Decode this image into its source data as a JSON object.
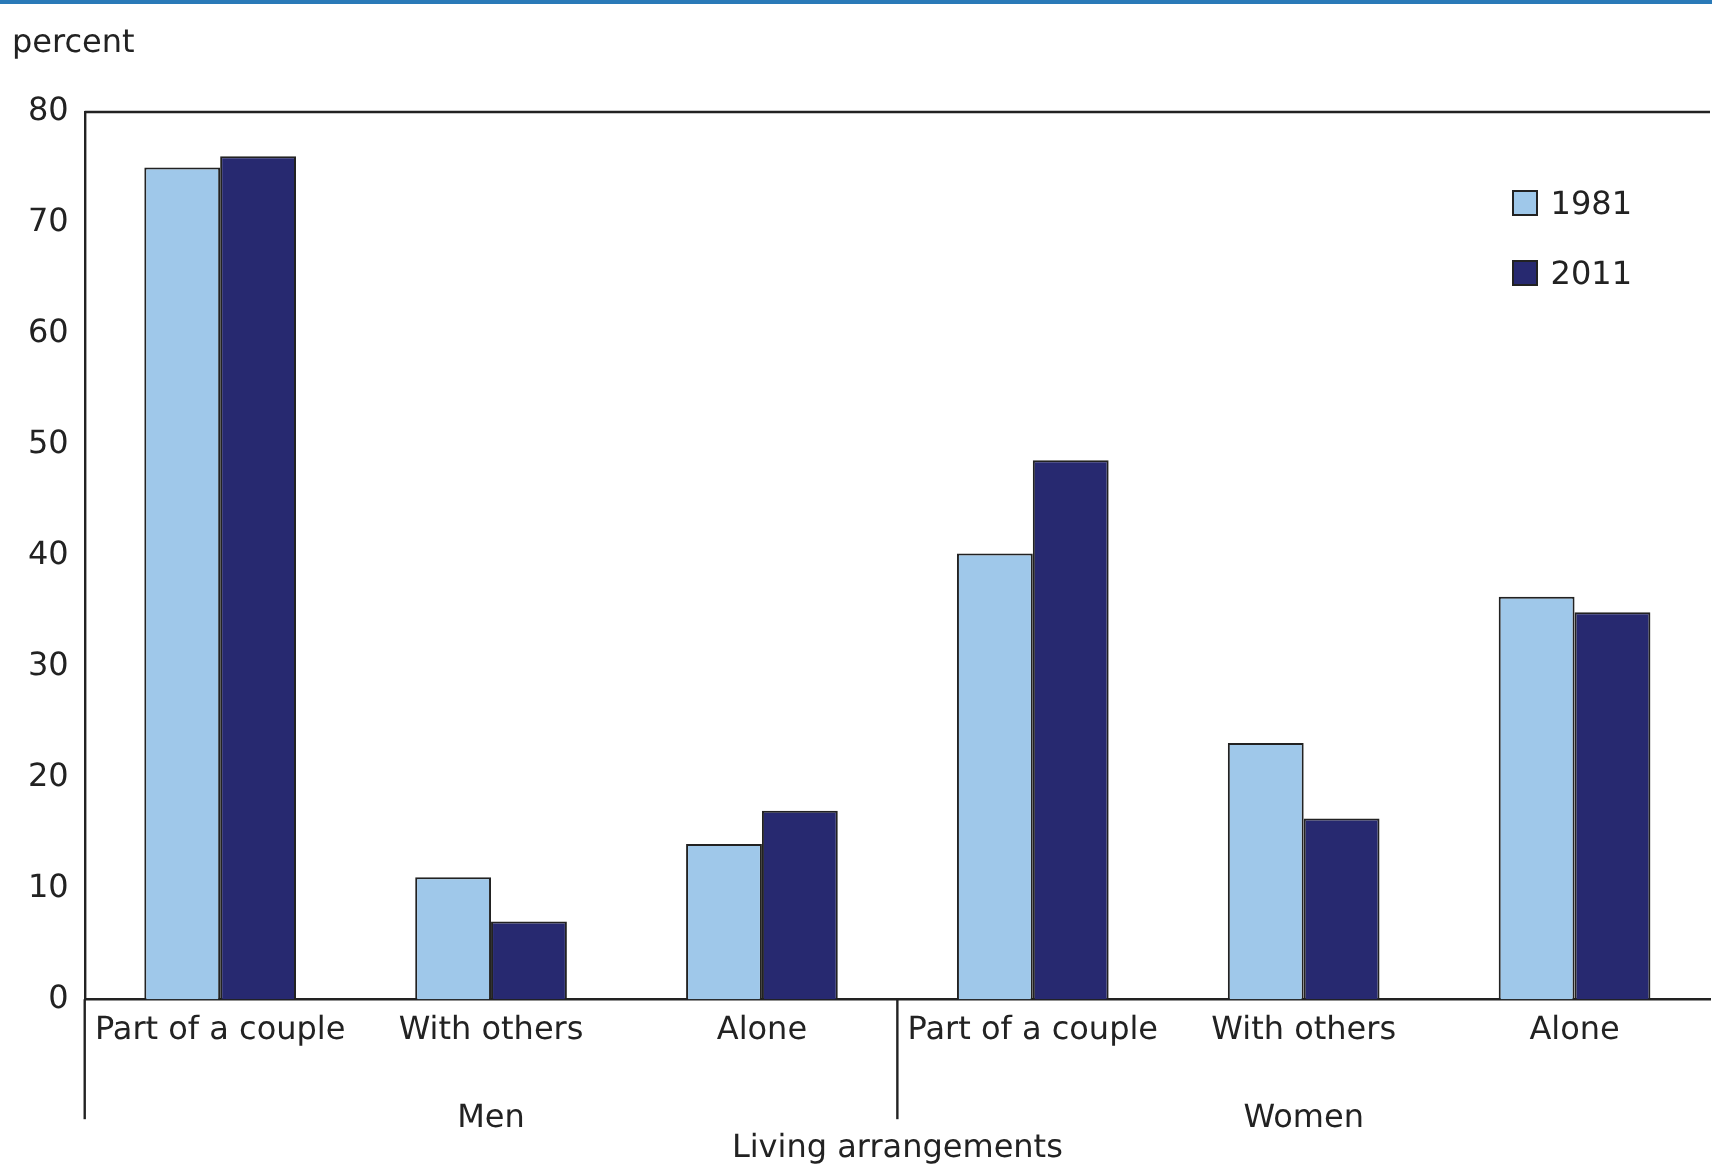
{
  "chart_data": {
    "type": "bar",
    "ylabel": "percent",
    "xlabel": "Living arrangements",
    "categories": [
      "Part of a couple",
      "With others",
      "Alone",
      "Part of a couple",
      "With others",
      "Alone"
    ],
    "series": [
      {
        "name": "1981",
        "color": "#9fc8ea",
        "values": [
          75,
          11,
          14,
          40.2,
          23.1,
          36.3
        ]
      },
      {
        "name": "2011",
        "color": "#272970",
        "values": [
          76,
          7,
          17,
          48.6,
          16.3,
          34.9
        ]
      }
    ],
    "annotations": [
      "Men",
      "Women"
    ],
    "ylim": [
      0,
      80
    ],
    "yticks": [
      0,
      10,
      20,
      30,
      40,
      50,
      60,
      70,
      80
    ],
    "grid": false,
    "legend": "top right"
  }
}
